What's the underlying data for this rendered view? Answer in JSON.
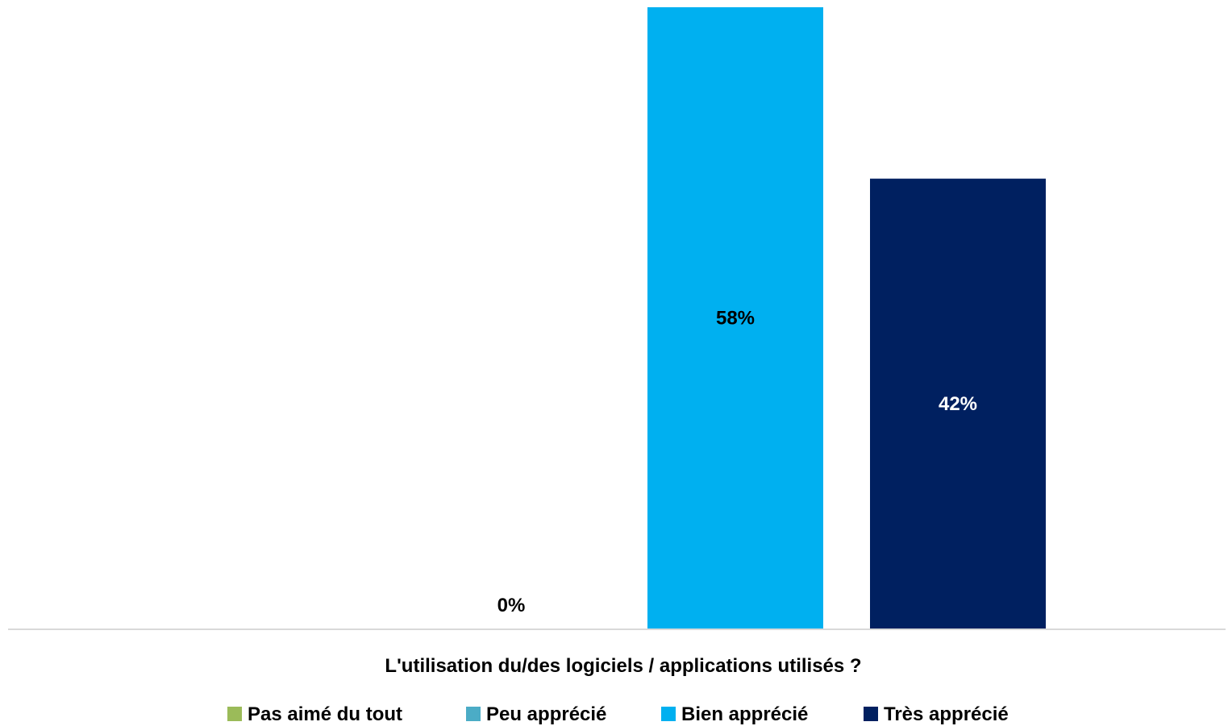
{
  "chart_data": {
    "type": "bar",
    "title": "",
    "xlabel": "L'utilisation du/des logiciels / applications utilisés ?",
    "ylabel": "",
    "ylim": [
      0,
      58
    ],
    "grid": false,
    "legend_position": "bottom",
    "categories": [
      "L'utilisation du/des logiciels / applications utilisés ?"
    ],
    "series": [
      {
        "name": "Pas aimé du tout",
        "values": [
          0
        ],
        "label": "",
        "color": "#9bbb59",
        "label_color": "#000000"
      },
      {
        "name": "Peu apprécié",
        "values": [
          0
        ],
        "label": "0%",
        "color": "#4bacc6",
        "label_color": "#000000"
      },
      {
        "name": "Bien apprécié",
        "values": [
          58
        ],
        "label": "58%",
        "color": "#00b0f0",
        "label_color": "#000000"
      },
      {
        "name": "Très apprécié",
        "values": [
          42
        ],
        "label": "42%",
        "color": "#002060",
        "label_color": "#ffffff"
      }
    ]
  }
}
